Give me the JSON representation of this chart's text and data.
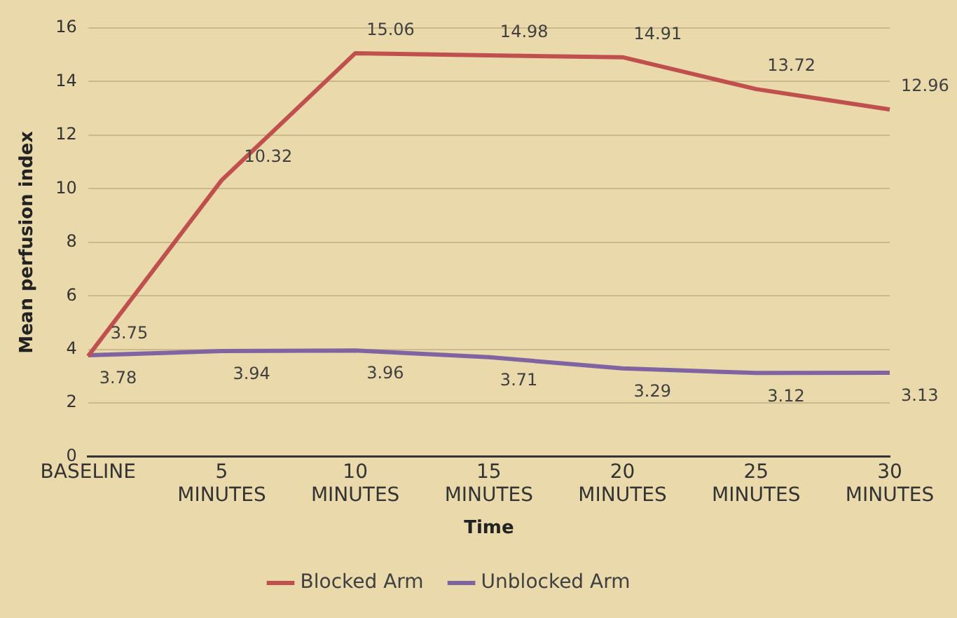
{
  "chart_data": {
    "type": "line",
    "xlabel": "Time",
    "ylabel": "Mean perfusion index",
    "categories": [
      "BASELINE",
      "5 MINUTES",
      "10 MINUTES",
      "15 MINUTES",
      "20 MINUTES",
      "25 MINUTES",
      "30 MINUTES"
    ],
    "series": [
      {
        "name": "Blocked Arm",
        "color": "#c0504d",
        "values": [
          3.75,
          10.32,
          15.06,
          14.98,
          14.91,
          13.72,
          12.96
        ]
      },
      {
        "name": "Unblocked Arm",
        "color": "#8064a2",
        "values": [
          3.78,
          3.94,
          3.96,
          3.71,
          3.29,
          3.12,
          3.13
        ]
      }
    ],
    "ylim": [
      0,
      16
    ],
    "yticks": [
      0,
      2,
      4,
      6,
      8,
      10,
      12,
      14,
      16
    ],
    "grid": "y",
    "legend": "bottom",
    "marker": "none",
    "line_style": "solid",
    "data_labels": true
  }
}
